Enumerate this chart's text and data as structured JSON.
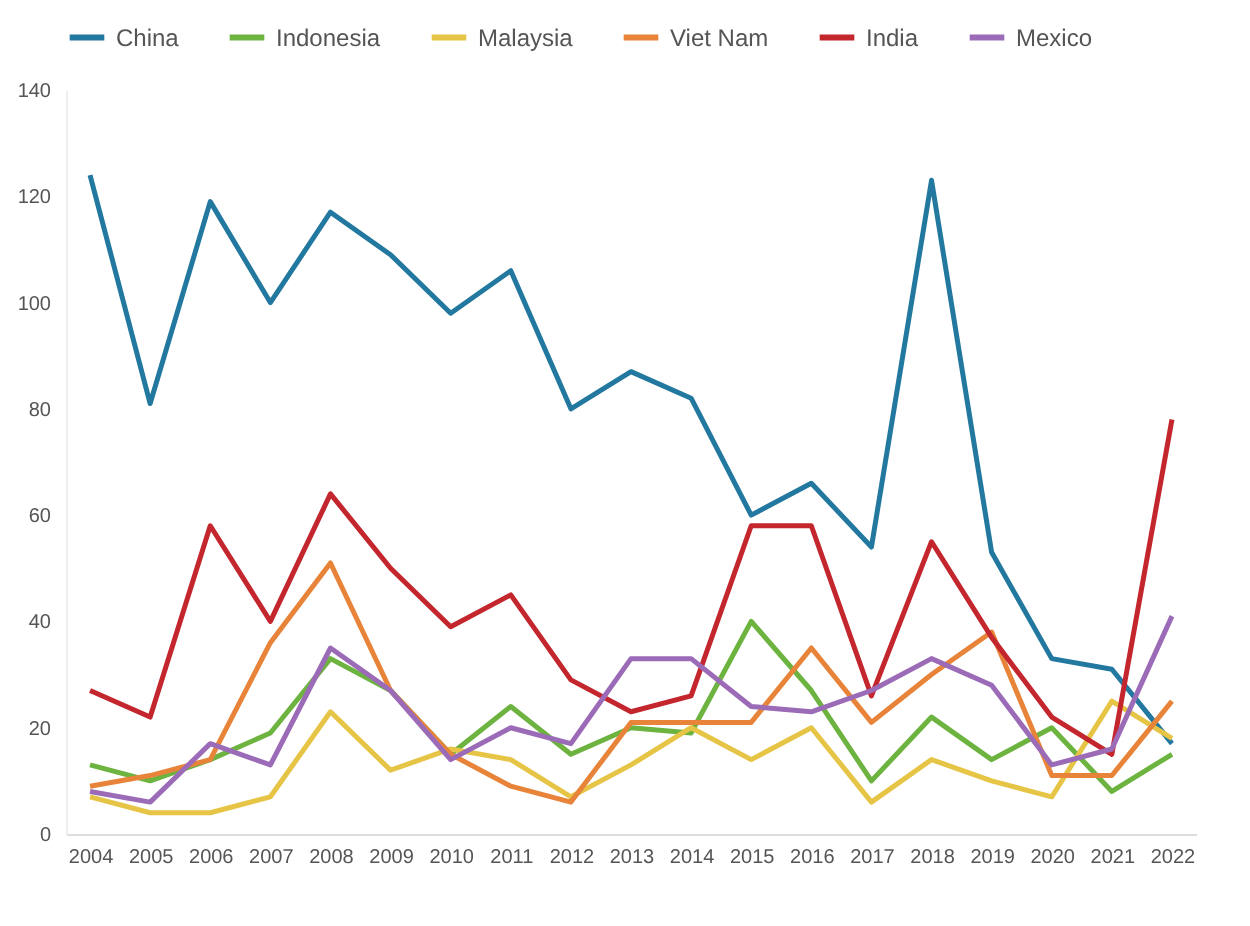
{
  "chart_data": {
    "type": "line",
    "categories": [
      "2004",
      "2005",
      "2006",
      "2007",
      "2008",
      "2009",
      "2010",
      "2011",
      "2012",
      "2013",
      "2014",
      "2015",
      "2016",
      "2017",
      "2018",
      "2019",
      "2020",
      "2021",
      "2022"
    ],
    "series": [
      {
        "name": "China",
        "color": "#2378a0",
        "values": [
          124,
          81,
          119,
          100,
          117,
          109,
          98,
          106,
          80,
          87,
          82,
          60,
          66,
          54,
          123,
          53,
          33,
          31,
          17
        ]
      },
      {
        "name": "Indonesia",
        "color": "#6cb33f",
        "values": [
          13,
          10,
          14,
          19,
          33,
          27,
          15,
          24,
          15,
          20,
          19,
          40,
          27,
          10,
          22,
          14,
          20,
          8,
          15
        ]
      },
      {
        "name": "Malaysia",
        "color": "#e6c445",
        "values": [
          7,
          4,
          4,
          7,
          23,
          12,
          16,
          14,
          7,
          13,
          20,
          14,
          20,
          6,
          14,
          10,
          7,
          25,
          18
        ]
      },
      {
        "name": "Viet Nam",
        "color": "#e8843a",
        "values": [
          9,
          11,
          14,
          36,
          51,
          27,
          15,
          9,
          6,
          21,
          21,
          21,
          35,
          21,
          30,
          38,
          11,
          11,
          25
        ]
      },
      {
        "name": "India",
        "color": "#c4262e",
        "values": [
          27,
          22,
          58,
          40,
          64,
          50,
          39,
          45,
          29,
          23,
          26,
          58,
          58,
          26,
          55,
          37,
          22,
          15,
          78
        ]
      },
      {
        "name": "Mexico",
        "color": "#9b6bb8",
        "values": [
          8,
          6,
          17,
          13,
          35,
          27,
          14,
          20,
          17,
          33,
          33,
          24,
          23,
          27,
          33,
          28,
          13,
          16,
          41
        ]
      }
    ],
    "ylim": [
      0,
      140
    ],
    "yticks": [
      0,
      20,
      40,
      60,
      80,
      100,
      120,
      140
    ],
    "grid": false,
    "legend": "top",
    "marker": "none",
    "line_style": "solid"
  }
}
